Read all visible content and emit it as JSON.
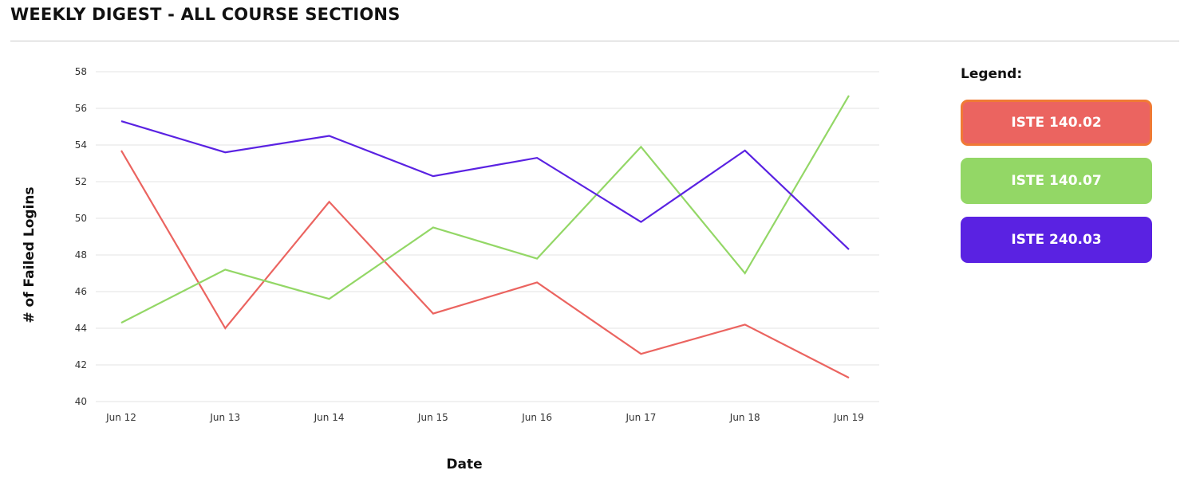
{
  "page": {
    "title": "WEEKLY DIGEST - ALL COURSE SECTIONS"
  },
  "legend": {
    "title": "Legend:",
    "items": [
      {
        "label": "ISTE 140.02",
        "color": "#eb6460",
        "border_color": "#f07a35",
        "selected": true
      },
      {
        "label": "ISTE 140.07",
        "color": "#93d766",
        "selected": false
      },
      {
        "label": "ISTE 240.03",
        "color": "#5a22e2",
        "selected": false
      }
    ]
  },
  "chart_data": {
    "type": "line",
    "title": "WEEKLY DIGEST - ALL COURSE SECTIONS",
    "xlabel": "Date",
    "ylabel": "# of Failed Logins",
    "ylim": [
      40,
      58
    ],
    "yticks": [
      40,
      42,
      44,
      46,
      48,
      50,
      52,
      54,
      56,
      58
    ],
    "grid": true,
    "legend_position": "right",
    "categories": [
      "Jun 12",
      "Jun 13",
      "Jun 14",
      "Jun 15",
      "Jun 16",
      "Jun 17",
      "Jun 18",
      "Jun 19"
    ],
    "series": [
      {
        "name": "ISTE 140.02",
        "color": "#eb6460",
        "values": [
          53.7,
          44.0,
          50.9,
          44.8,
          46.5,
          42.6,
          44.2,
          41.3
        ]
      },
      {
        "name": "ISTE 140.07",
        "color": "#93d766",
        "values": [
          44.3,
          47.2,
          45.6,
          49.5,
          47.8,
          53.9,
          47.0,
          56.7
        ]
      },
      {
        "name": "ISTE 240.03",
        "color": "#5a22e2",
        "values": [
          55.3,
          53.6,
          54.5,
          52.3,
          53.3,
          49.8,
          53.7,
          48.3
        ]
      }
    ]
  }
}
